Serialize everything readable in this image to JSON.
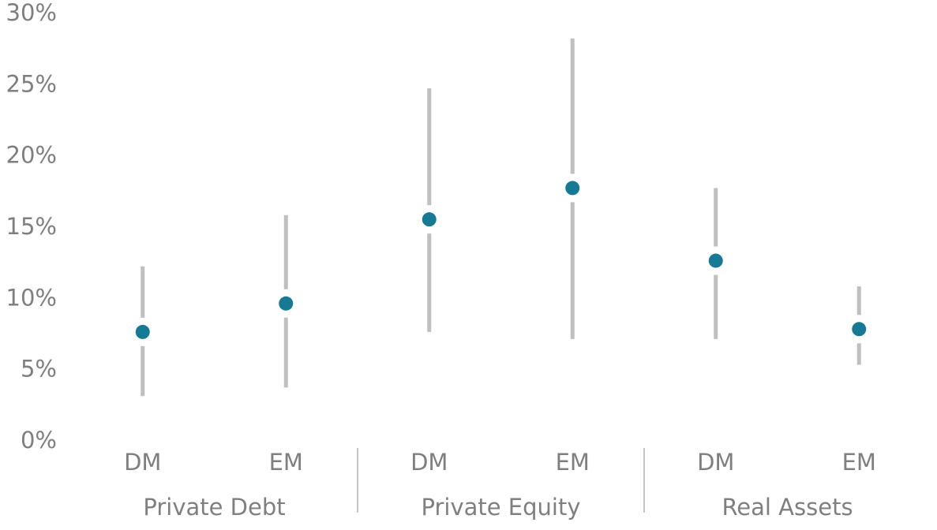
{
  "chart_data": {
    "type": "range",
    "groups": [
      {
        "label": "Private Debt",
        "categories": [
          "DM",
          "EM"
        ],
        "low": [
          3.2,
          3.8
        ],
        "median": [
          7.7,
          9.7
        ],
        "high": [
          12.3,
          15.9
        ]
      },
      {
        "label": "Private Equity",
        "categories": [
          "DM",
          "EM"
        ],
        "low": [
          7.7,
          7.2
        ],
        "median": [
          15.6,
          17.8
        ],
        "high": [
          24.8,
          28.3
        ]
      },
      {
        "label": "Real Assets",
        "categories": [
          "DM",
          "EM"
        ],
        "low": [
          7.2,
          5.4
        ],
        "median": [
          12.7,
          7.9
        ],
        "high": [
          17.8,
          10.9
        ]
      }
    ],
    "median_color": "#177a95",
    "range_color": "#bfbfbf",
    "ylim": [
      0,
      30
    ],
    "yticks": [
      {
        "value": 0,
        "label": "0%"
      },
      {
        "value": 5,
        "label": "5%"
      },
      {
        "value": 10,
        "label": "10%"
      },
      {
        "value": 15,
        "label": "15%"
      },
      {
        "value": 20,
        "label": "20%"
      },
      {
        "value": 25,
        "label": "25%"
      },
      {
        "value": 30,
        "label": "30%"
      }
    ]
  }
}
